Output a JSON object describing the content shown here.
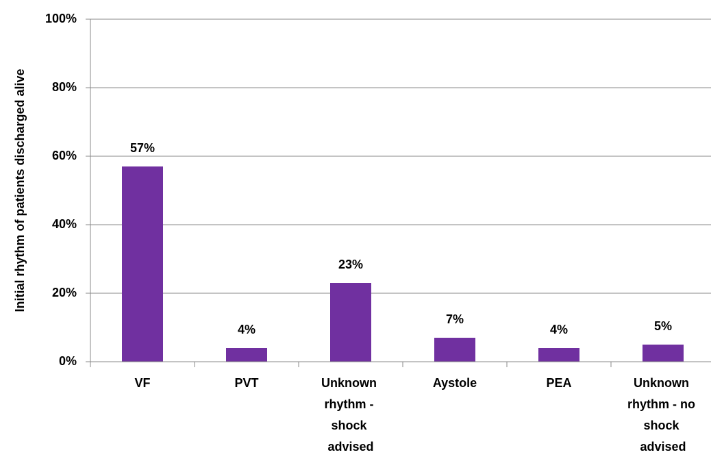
{
  "chart_data": {
    "type": "bar",
    "y_label": "Initial rhythm of patients discharged alive",
    "categories": [
      "VF",
      "PVT",
      "Unknown rhythm - shock advised",
      "Aystole",
      "PEA",
      "Unknown rhythm - no shock advised"
    ],
    "values": [
      57,
      4,
      23,
      7,
      4,
      5
    ],
    "value_labels": [
      "57%",
      "4%",
      "23%",
      "7%",
      "4%",
      "5%"
    ],
    "color": "#7030a0",
    "ylim": [
      0,
      100
    ],
    "yticks": [
      {
        "value": 0,
        "label": "0%"
      },
      {
        "value": 20,
        "label": "20%"
      },
      {
        "value": 40,
        "label": "40%"
      },
      {
        "value": 60,
        "label": "60%"
      },
      {
        "value": 80,
        "label": "80%"
      },
      {
        "value": 100,
        "label": "100%"
      }
    ],
    "grid": true
  }
}
